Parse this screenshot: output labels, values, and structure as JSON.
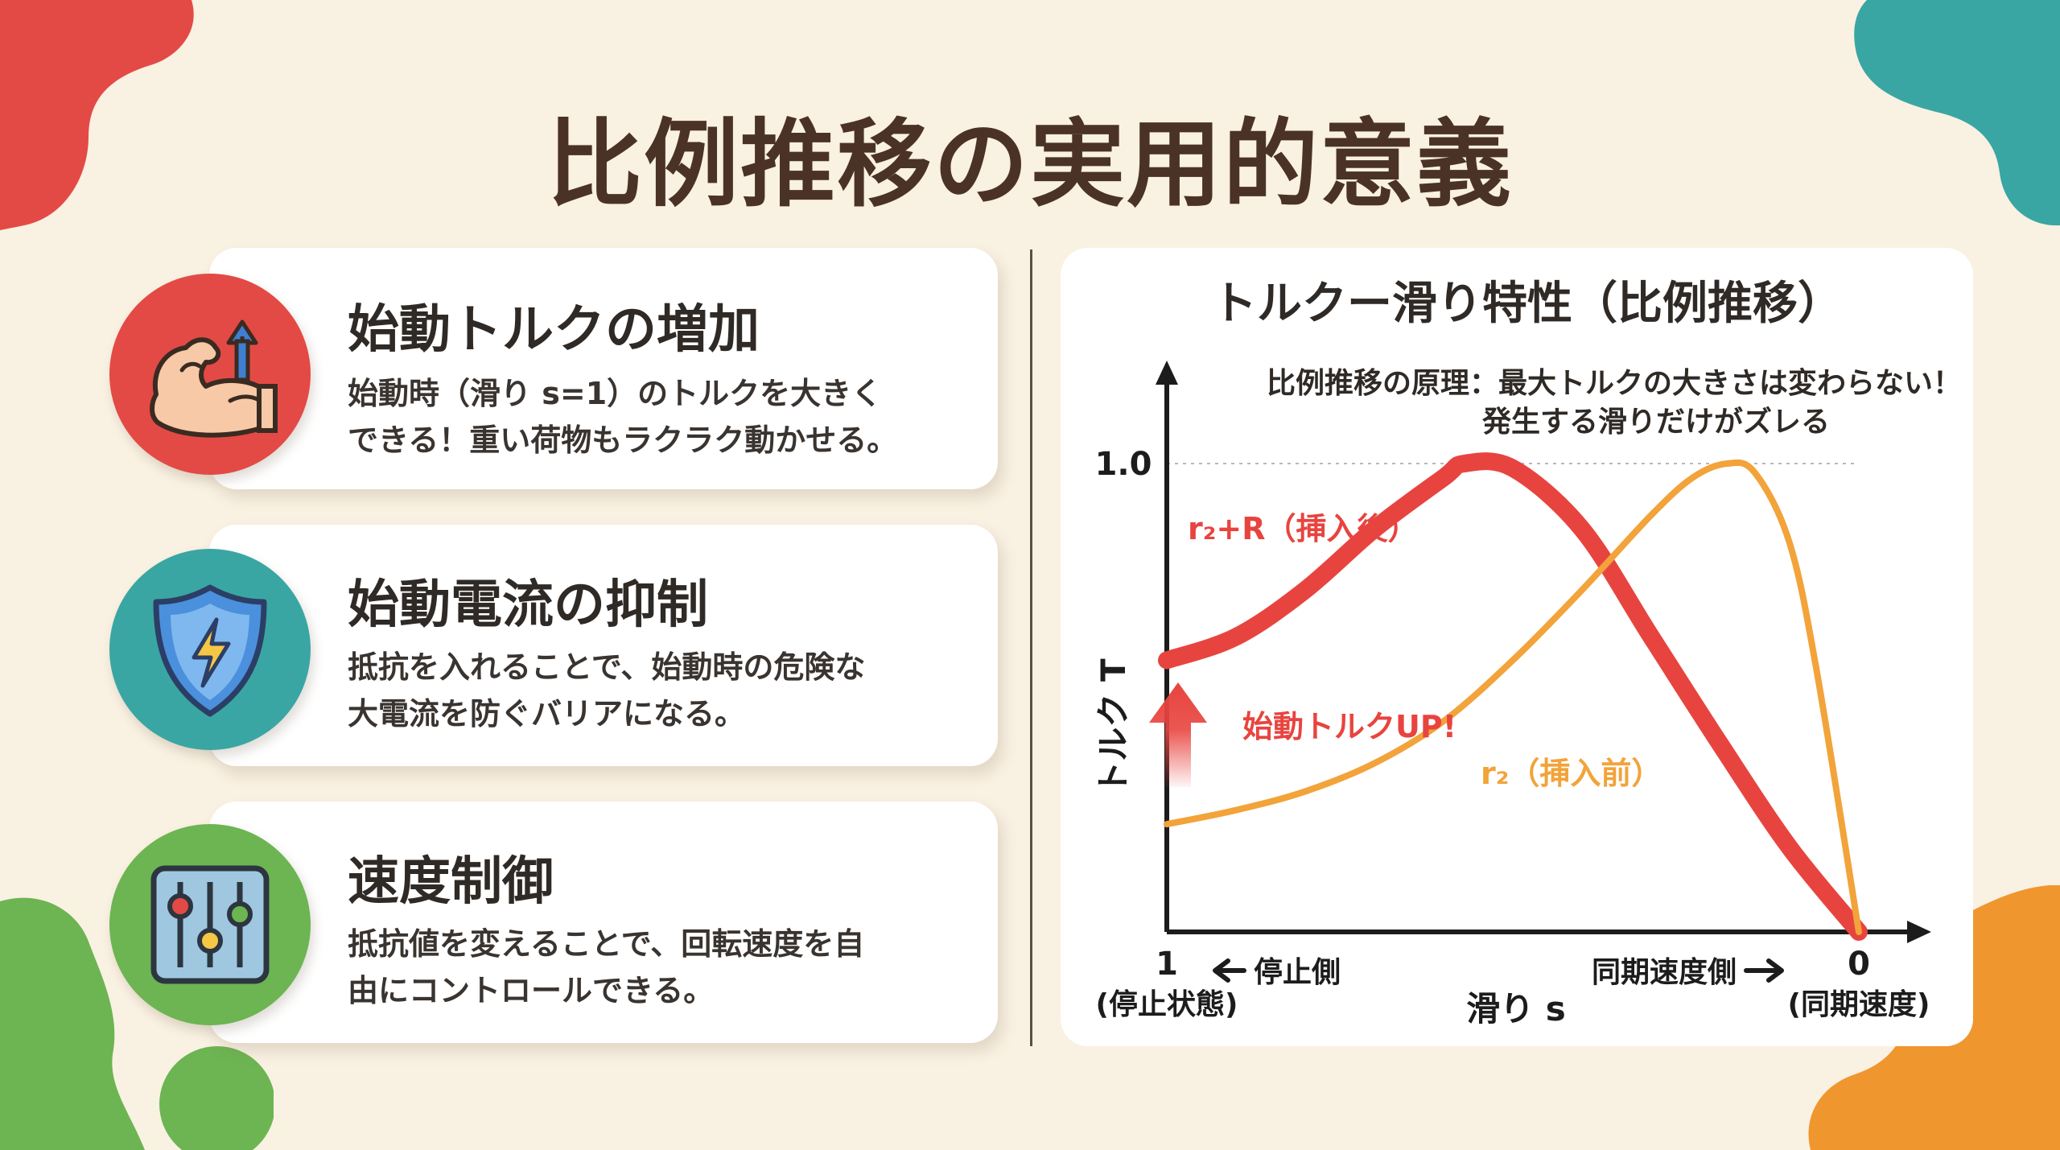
{
  "title": "比例推移の実用的意義",
  "colors": {
    "background": "#f9f1e2",
    "red": "#e34a45",
    "teal": "#3aa6a3",
    "green": "#6cb552",
    "orange": "#f0962e",
    "curve_after": "#e8443f",
    "curve_before": "#f2a33a"
  },
  "cards": [
    {
      "icon": "flexed-arm-arrow-icon",
      "icon_color": "#e34a45",
      "title": "始動トルクの増加",
      "desc_lines": [
        "始動時（滑り s=1）のトルクを大きく",
        "できる！重い荷物もラクラク動かせる。"
      ]
    },
    {
      "icon": "lightning-shield-icon",
      "icon_color": "#3aa6a3",
      "title": "始動電流の抑制",
      "desc_lines": [
        "抵抗を入れることで、始動時の危険な",
        "大電流を防ぐバリアになる。"
      ]
    },
    {
      "icon": "slider-controls-icon",
      "icon_color": "#6cb552",
      "title": "速度制御",
      "desc_lines": [
        "抵抗値を変えることで、回転速度を自",
        "由にコントロールできる。"
      ]
    }
  ],
  "chart_data": {
    "type": "line",
    "title": "トルクー滑り特性（比例推移）",
    "annotation_lines": [
      "比例推移の原理：最大トルクの大きさは変わらない！",
      "発生する滑りだけがズレる"
    ],
    "ylabel": "トルク T",
    "xlabel": "滑り s",
    "x_reversed": true,
    "xlim": [
      1,
      0
    ],
    "ylim": [
      0,
      1.0
    ],
    "y_tick_label": "1.0",
    "x_left_tick": "1",
    "x_left_sub": "(停止状態)",
    "x_right_tick": "0",
    "x_right_sub": "(同期速度)",
    "x_left_arrow_label": "停止側",
    "x_right_arrow_label": "同期速度側",
    "startup_label": "始動トルクUP!",
    "max_torque_reference": 1.0,
    "series": [
      {
        "name": "r₂+R（挿入後）",
        "color": "#e8443f",
        "points": [
          [
            1.0,
            0.58
          ],
          [
            0.9,
            0.63
          ],
          [
            0.8,
            0.73
          ],
          [
            0.7,
            0.86
          ],
          [
            0.6,
            0.97
          ],
          [
            0.57,
            1.0
          ],
          [
            0.5,
            0.99
          ],
          [
            0.4,
            0.86
          ],
          [
            0.3,
            0.63
          ],
          [
            0.2,
            0.4
          ],
          [
            0.1,
            0.18
          ],
          [
            0.0,
            0.0
          ]
        ]
      },
      {
        "name": "r₂（挿入前）",
        "color": "#f2a33a",
        "points": [
          [
            1.0,
            0.23
          ],
          [
            0.9,
            0.26
          ],
          [
            0.8,
            0.3
          ],
          [
            0.7,
            0.36
          ],
          [
            0.6,
            0.45
          ],
          [
            0.5,
            0.58
          ],
          [
            0.4,
            0.73
          ],
          [
            0.3,
            0.89
          ],
          [
            0.24,
            0.97
          ],
          [
            0.19,
            1.0
          ],
          [
            0.15,
            0.98
          ],
          [
            0.1,
            0.83
          ],
          [
            0.06,
            0.55
          ],
          [
            0.0,
            0.0
          ]
        ]
      }
    ]
  }
}
